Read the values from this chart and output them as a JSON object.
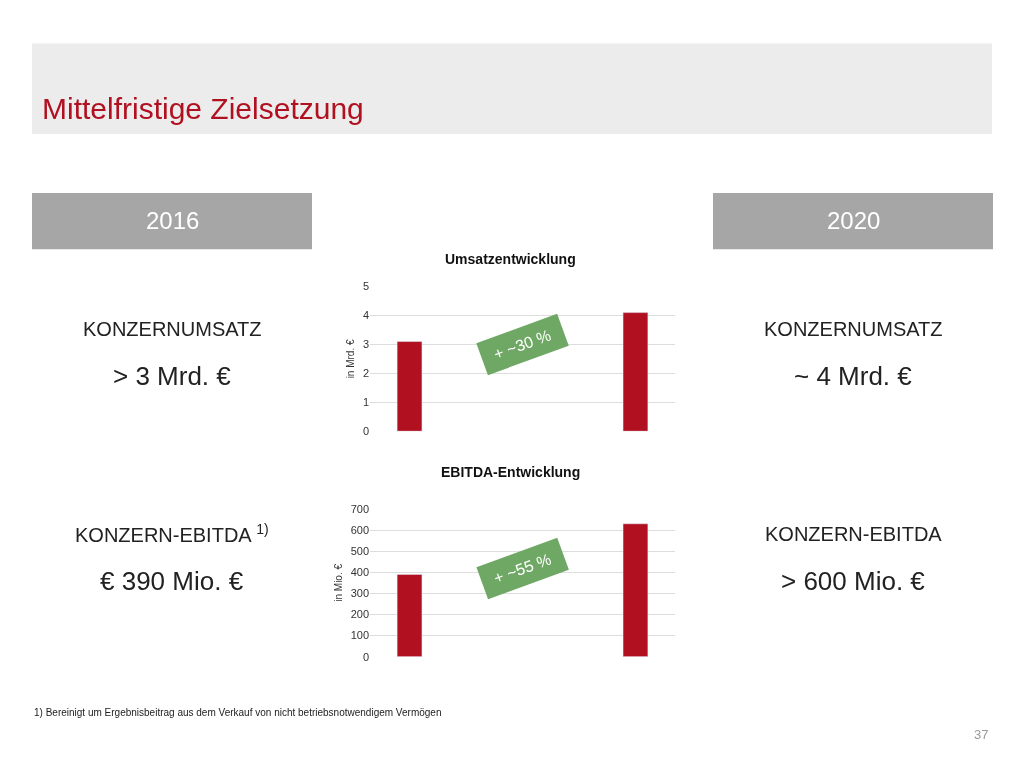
{
  "chart_data": [
    {
      "type": "other",
      "title": "Mittelfristige Zielsetzung"
    },
    {
      "type": "other",
      "title": "2016",
      "annotations": [
        "KONZERNUMSATZ",
        "> 3 Mrd. €",
        "KONZERN-EBITDA $^{1)}$",
        "€ 390 Mio. €"
      ]
    },
    {
      "type": "bar",
      "title": "Umsatzentwicklung",
      "ylabel": "in Mrd. €",
      "categories": [
        null,
        null,
        null
      ],
      "values": [
        3.1,
        null,
        4.1
      ],
      "color": "#b01020",
      "ylim": [
        0,
        5
      ],
      "yticks": [
        0,
        1,
        2,
        3,
        4,
        5
      ],
      "grid": "y",
      "annotations": [
        "+ ~30 %"
      ]
    },
    {
      "type": "bar",
      "title": "EBITDA-Entwicklung",
      "ylabel": "in Mio. €",
      "categories": [
        null,
        null,
        null
      ],
      "values": [
        390,
        null,
        630
      ],
      "color": "#b01020",
      "ylim": [
        0,
        700
      ],
      "yticks": [
        0,
        100,
        200,
        300,
        400,
        500,
        600,
        700
      ],
      "grid": "y",
      "annotations": [
        "+ ~55 %"
      ]
    },
    {
      "type": "other",
      "title": "2020",
      "annotations": [
        "KONZERNUMSATZ",
        "~ 4 Mrd. €",
        "KONZERN-EBITDA",
        "> 600 Mio. €"
      ]
    },
    {
      "type": "other",
      "annotations": [
        "1) Bereinigt um Ergebnisbeitrag aus dem Verkauf von nicht betriebsnotwendigem Vermögen",
        "37"
      ]
    }
  ]
}
